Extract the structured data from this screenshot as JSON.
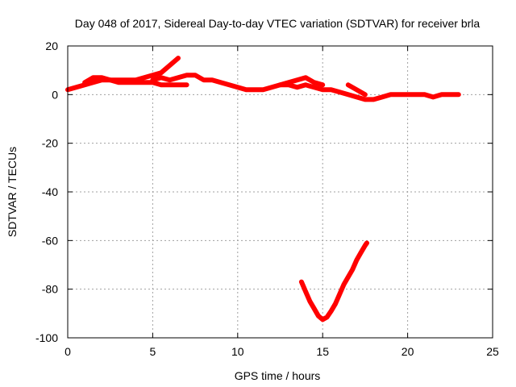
{
  "chart_data": {
    "type": "line",
    "title": "Day 048 of 2017, Sidereal Day-to-day VTEC variation (SDTVAR) for receiver brla",
    "xlabel": "GPS time / hours",
    "ylabel": "SDTVAR / TECUs",
    "xlim": [
      0,
      25
    ],
    "ylim": [
      -100,
      20
    ],
    "xticks": [
      0,
      5,
      10,
      15,
      20,
      25
    ],
    "yticks": [
      -100,
      -80,
      -60,
      -40,
      -20,
      0,
      20
    ],
    "grid": true,
    "series": [
      {
        "color": "#ff0000",
        "x": [
          0.0,
          0.5,
          1.0,
          1.5,
          2.0,
          2.5,
          3.0,
          3.5,
          4.0,
          4.5,
          5.0,
          5.5,
          6.0,
          6.5
        ],
        "y": [
          2,
          3,
          4,
          5,
          6,
          6,
          6,
          6,
          6,
          7,
          8,
          9,
          12,
          15
        ]
      },
      {
        "color": "#ff0000",
        "x": [
          1.0,
          1.5,
          2.0,
          2.5,
          3.0,
          3.5,
          4.0,
          4.5,
          5.0,
          5.5,
          6.0,
          6.5,
          7.0
        ],
        "y": [
          5,
          7,
          7,
          6,
          5,
          5,
          5,
          5,
          5,
          4,
          4,
          4,
          4
        ]
      },
      {
        "color": "#ff0000",
        "x": [
          5.0,
          5.5,
          6.0,
          6.5,
          7.0,
          7.5,
          8.0,
          8.5,
          9.0,
          9.5,
          10.0,
          10.5,
          11.0,
          11.5,
          12.0,
          12.5,
          13.0,
          13.5,
          14.0,
          14.5,
          15.0,
          15.5,
          16.0,
          16.5,
          17.0,
          17.5,
          18.0,
          18.5,
          19.0,
          19.5,
          20.0,
          20.5,
          21.0,
          21.5,
          22.0,
          22.5,
          23.0
        ],
        "y": [
          6,
          7,
          6,
          7,
          8,
          8,
          6,
          6,
          5,
          4,
          3,
          2,
          2,
          2,
          3,
          4,
          4,
          3,
          4,
          3,
          2,
          2,
          1,
          0,
          -1,
          -2,
          -2,
          -1,
          0,
          0,
          0,
          0,
          0,
          -1,
          0,
          0,
          0
        ]
      },
      {
        "color": "#ff0000",
        "x": [
          12.5,
          13.0,
          13.5,
          14.0,
          14.5,
          15.0
        ],
        "y": [
          4,
          5,
          6,
          7,
          5,
          4
        ]
      },
      {
        "color": "#ff0000",
        "x": [
          16.5,
          17.0,
          17.5
        ],
        "y": [
          4,
          2,
          0
        ]
      },
      {
        "color": "#ff0000",
        "x": [
          13.75,
          14.0,
          14.25,
          14.5,
          14.75,
          15.0,
          15.25,
          15.5,
          15.75,
          16.0,
          16.25,
          16.5,
          16.75,
          17.0,
          17.25,
          17.5,
          17.6
        ],
        "y": [
          -77,
          -81,
          -85,
          -88,
          -91,
          -92.5,
          -91.5,
          -89,
          -86,
          -82,
          -78,
          -75,
          -72,
          -68,
          -65,
          -62,
          -61
        ]
      }
    ]
  }
}
